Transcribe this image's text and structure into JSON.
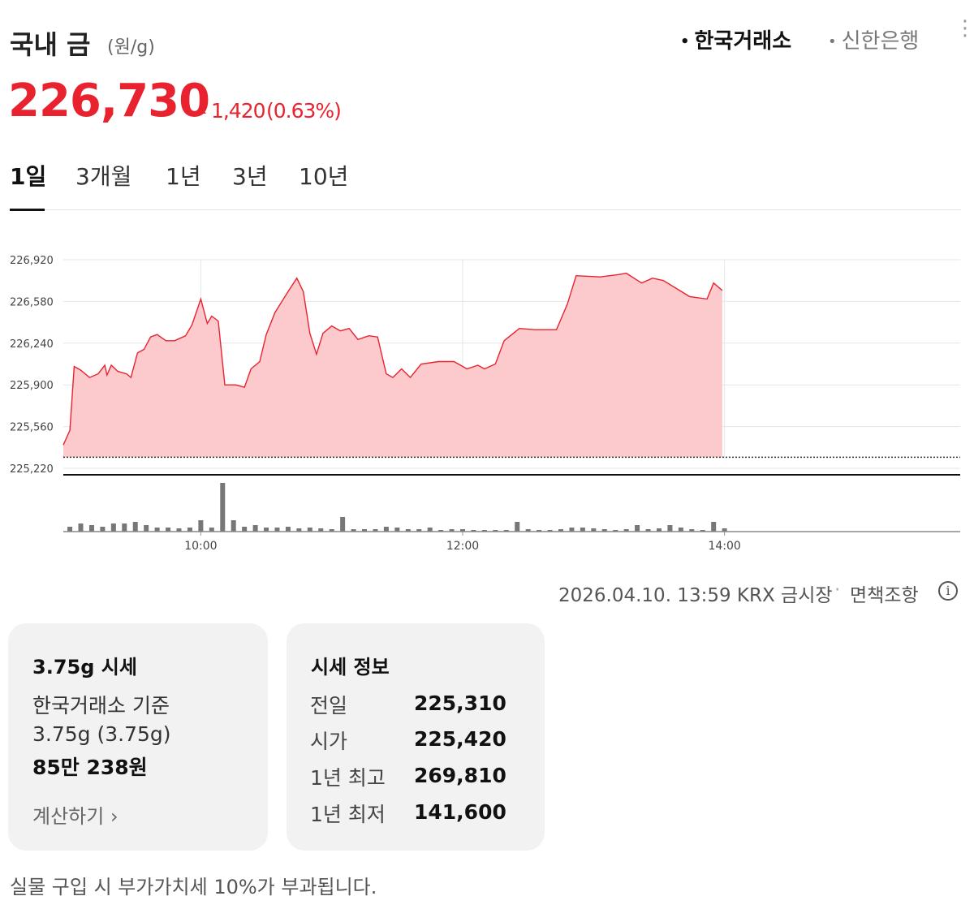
{
  "header": {
    "title": "국내 금",
    "unit": "(원/g)",
    "sources": [
      "한국거래소",
      "신한은행"
    ],
    "price": "226,730",
    "change": "1,420",
    "change_pct": "(0.63%)"
  },
  "tabs": [
    "1일",
    "3개월",
    "1년",
    "3년",
    "10년"
  ],
  "chart_data": {
    "type": "line",
    "color": "#e8222e",
    "fill": "#fccacd",
    "x": [
      537,
      540,
      542,
      545,
      549,
      553,
      556,
      557,
      559,
      562,
      566,
      568,
      571,
      574,
      577,
      580,
      584,
      588,
      593,
      596,
      600,
      603,
      605,
      608,
      611,
      616,
      620,
      623,
      627,
      630,
      634,
      640,
      644,
      647,
      650,
      653,
      656,
      660,
      664,
      668,
      672,
      677,
      681,
      685,
      688,
      692,
      696,
      701,
      709,
      716,
      722,
      727,
      730,
      735,
      739,
      746,
      753,
      757,
      763,
      768,
      772,
      783,
      792,
      795,
      802,
      807,
      812,
      824,
      832,
      835,
      839
    ],
    "values": [
      225410,
      225530,
      226050,
      226020,
      225960,
      225990,
      226060,
      225980,
      226060,
      226010,
      225990,
      225960,
      226160,
      226190,
      226290,
      226310,
      226260,
      226260,
      226300,
      226390,
      226600,
      226400,
      226460,
      226420,
      225900,
      225900,
      225880,
      226030,
      226090,
      226310,
      226490,
      226660,
      226770,
      226660,
      226320,
      226150,
      226320,
      226380,
      226340,
      226360,
      226270,
      226300,
      226290,
      225990,
      225960,
      226030,
      225960,
      226070,
      226090,
      226090,
      226030,
      226060,
      226030,
      226070,
      226260,
      226360,
      226350,
      226350,
      226350,
      226560,
      226790,
      226780,
      226800,
      226810,
      226730,
      226770,
      226750,
      226620,
      226600,
      226730,
      226670
    ],
    "baseline": 225310,
    "xlim": [
      537,
      948
    ],
    "xticks": [
      {
        "value": 600,
        "label": "10:00"
      },
      {
        "value": 720,
        "label": "12:00"
      },
      {
        "value": 840,
        "label": "14:00"
      }
    ],
    "ylim": [
      225220,
      226920
    ],
    "yticks": [
      {
        "value": 225220,
        "label": "225,220"
      },
      {
        "value": 225560,
        "label": "225,560"
      },
      {
        "value": 225900,
        "label": "225,900"
      },
      {
        "value": 226240,
        "label": "226,240"
      },
      {
        "value": 226580,
        "label": "226,580"
      },
      {
        "value": 226920,
        "label": "226,920"
      }
    ],
    "grid": true,
    "volume": {
      "color": "#777777",
      "vlim": [
        0,
        60
      ],
      "x": [
        540,
        545,
        550,
        555,
        560,
        565,
        570,
        575,
        580,
        585,
        590,
        595,
        600,
        605,
        610,
        615,
        620,
        625,
        630,
        635,
        640,
        645,
        650,
        655,
        660,
        665,
        670,
        675,
        680,
        685,
        690,
        695,
        700,
        705,
        710,
        715,
        720,
        725,
        730,
        735,
        740,
        745,
        750,
        755,
        760,
        765,
        770,
        775,
        780,
        785,
        790,
        795,
        800,
        805,
        810,
        815,
        820,
        825,
        830,
        835,
        840
      ],
      "values": [
        6,
        10,
        8,
        6,
        10,
        10,
        12,
        8,
        5,
        5,
        4,
        5,
        14,
        5,
        60,
        14,
        6,
        8,
        5,
        5,
        6,
        4,
        5,
        4,
        3,
        18,
        3,
        3,
        3,
        6,
        5,
        3,
        3,
        5,
        2,
        3,
        3,
        2,
        2,
        2,
        2,
        12,
        3,
        2,
        2,
        3,
        5,
        5,
        4,
        3,
        2,
        3,
        8,
        3,
        4,
        8,
        5,
        3,
        2,
        12,
        4
      ]
    }
  },
  "footer": {
    "timestamp": "2026.04.10. 13:59 KRX 금시장",
    "disclaimer": "면책조항"
  },
  "cards": [
    {
      "title": "3.75g 시세",
      "lines": [
        "한국거래소 기준",
        "3.75g (3.75g)",
        "85만 238원"
      ],
      "link": "계산하기"
    },
    {
      "title": "시세 정보",
      "rows": [
        [
          "전일",
          "225,310"
        ],
        [
          "시가",
          "225,420"
        ],
        [
          "1년 최고",
          "269,810"
        ],
        [
          "1년 최저",
          "141,600"
        ]
      ]
    }
  ],
  "notice": "실물 구입 시 부가가치세 10%가 부과됩니다."
}
